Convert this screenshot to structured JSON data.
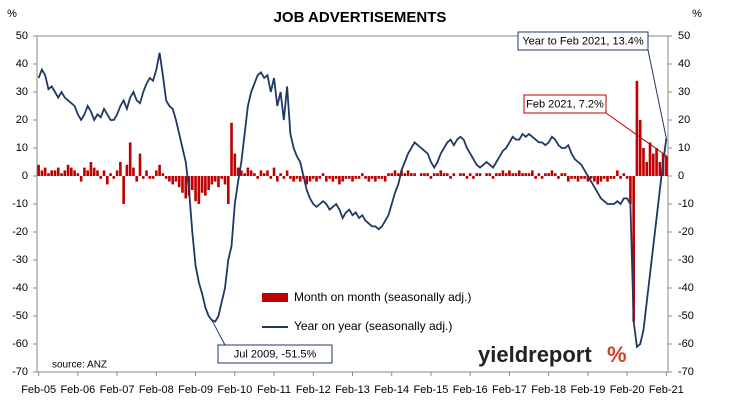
{
  "chart_data": {
    "type": "combo",
    "title": "JOB ADVERTISEMENTS",
    "y_label": "%",
    "y2_label": "%",
    "source": "source: ANZ",
    "logo": "yieldreport",
    "logo_mark": "%",
    "annotations": [
      "Year to Feb 2021, 13.4%",
      "Feb 2021, 7.2%",
      "Jul 2009, -51.5%"
    ],
    "ylim": [
      -70,
      50
    ],
    "yticks": [
      -70,
      -60,
      -50,
      -40,
      -30,
      -20,
      -10,
      0,
      10,
      20,
      30,
      40,
      50
    ],
    "y2lim": [
      -70,
      50
    ],
    "y2ticks": [
      -70,
      -60,
      -50,
      -40,
      -30,
      -20,
      -10,
      0,
      10,
      20,
      30,
      40,
      50
    ],
    "grid": false,
    "categories": [
      "Feb-05",
      null,
      null,
      null,
      null,
      null,
      null,
      null,
      null,
      null,
      null,
      null,
      "Feb-06",
      null,
      null,
      null,
      null,
      null,
      null,
      null,
      null,
      null,
      null,
      null,
      "Feb-07",
      null,
      null,
      null,
      null,
      null,
      null,
      null,
      null,
      null,
      null,
      null,
      "Feb-08",
      null,
      null,
      null,
      null,
      null,
      null,
      null,
      null,
      null,
      null,
      null,
      "Feb-09",
      null,
      null,
      null,
      null,
      null,
      null,
      null,
      null,
      null,
      null,
      null,
      "Feb-10",
      null,
      null,
      null,
      null,
      null,
      null,
      null,
      null,
      null,
      null,
      null,
      "Feb-11",
      null,
      null,
      null,
      null,
      null,
      null,
      null,
      null,
      null,
      null,
      null,
      "Feb-12",
      null,
      null,
      null,
      null,
      null,
      null,
      null,
      null,
      null,
      null,
      null,
      "Feb-13",
      null,
      null,
      null,
      null,
      null,
      null,
      null,
      null,
      null,
      null,
      null,
      "Feb-14",
      null,
      null,
      null,
      null,
      null,
      null,
      null,
      null,
      null,
      null,
      null,
      "Feb-15",
      null,
      null,
      null,
      null,
      null,
      null,
      null,
      null,
      null,
      null,
      null,
      "Feb-16",
      null,
      null,
      null,
      null,
      null,
      null,
      null,
      null,
      null,
      null,
      null,
      "Feb-17",
      null,
      null,
      null,
      null,
      null,
      null,
      null,
      null,
      null,
      null,
      null,
      "Feb-18",
      null,
      null,
      null,
      null,
      null,
      null,
      null,
      null,
      null,
      null,
      null,
      "Feb-19",
      null,
      null,
      null,
      null,
      null,
      null,
      null,
      null,
      null,
      null,
      null,
      "Feb-20",
      null,
      null,
      null,
      null,
      null,
      null,
      null,
      null,
      null,
      null,
      null,
      "Feb-21"
    ],
    "series": [
      {
        "name": "Month on month (seasonally adj.)",
        "type": "bar",
        "color": "#c00000",
        "values": [
          4,
          2,
          3,
          1,
          2,
          2,
          3,
          1,
          2,
          4,
          3,
          2,
          1,
          -2,
          3,
          2,
          5,
          3,
          2,
          -1,
          2,
          -3,
          1,
          -1,
          2,
          5,
          -10,
          4,
          12,
          3,
          -2,
          8,
          -1,
          2,
          -1,
          -1,
          2,
          4,
          1,
          -1,
          -2,
          -3,
          -2,
          -4,
          -6,
          -8,
          -7,
          -5,
          -9,
          -10,
          -6,
          -7,
          -5,
          -3,
          -2,
          -4,
          -1,
          -3,
          -10,
          19,
          8,
          3,
          2,
          1,
          3,
          2,
          1,
          -1,
          2,
          1,
          2,
          -1,
          3,
          -2,
          1,
          -1,
          2,
          -1,
          -2,
          -1,
          -2,
          -1,
          -3,
          -2,
          -1,
          -2,
          -1,
          1,
          -2,
          -1,
          -2,
          -1,
          -3,
          -2,
          -1,
          -1,
          -2,
          -1,
          -1,
          1,
          -1,
          -2,
          -1,
          -2,
          -1,
          -1,
          -2,
          1,
          1,
          2,
          1,
          2,
          1,
          2,
          1,
          1,
          0,
          1,
          1,
          1,
          -1,
          1,
          1,
          2,
          1,
          1,
          -1,
          1,
          0,
          1,
          1,
          -1,
          1,
          -1,
          1,
          1,
          0,
          1,
          1,
          -1,
          1,
          1,
          2,
          1,
          2,
          1,
          1,
          2,
          1,
          1,
          1,
          2,
          -1,
          1,
          -1,
          1,
          1,
          2,
          1,
          -1,
          1,
          1,
          -2,
          -1,
          -1,
          -2,
          -1,
          -1,
          -2,
          -1,
          -2,
          -3,
          -2,
          -1,
          -2,
          -1,
          -1,
          2,
          -1,
          1,
          -1,
          -10,
          -52,
          34,
          20,
          10,
          5,
          12,
          8,
          10,
          5,
          8,
          7.2
        ]
      },
      {
        "name": "Year on year (seasonally adj.)",
        "type": "line",
        "color": "#1f3864",
        "values": [
          35,
          38,
          36,
          31,
          32,
          30,
          28,
          30,
          28,
          27,
          26,
          25,
          22,
          20,
          22,
          25,
          23,
          20,
          22,
          21,
          24,
          22,
          20,
          20,
          22,
          25,
          27,
          24,
          28,
          30,
          27,
          26,
          30,
          33,
          35,
          34,
          38,
          44,
          36,
          27,
          25,
          24,
          20,
          15,
          10,
          5,
          -5,
          -20,
          -32,
          -38,
          -42,
          -47,
          -50,
          -51.5,
          -52,
          -50,
          -45,
          -40,
          -30,
          -25,
          -10,
          -2,
          5,
          15,
          25,
          30,
          33,
          36,
          37,
          35,
          36,
          30,
          35,
          25,
          30,
          20,
          32,
          15,
          10,
          7,
          5,
          0,
          -5,
          -8,
          -10,
          -11,
          -10,
          -9,
          -10,
          -12,
          -11,
          -10,
          -12,
          -15,
          -13,
          -12,
          -14,
          -13,
          -15,
          -14,
          -16,
          -17,
          -18,
          -18,
          -19,
          -18,
          -16,
          -14,
          -10,
          -6,
          -3,
          2,
          5,
          8,
          10,
          12,
          11,
          10,
          9,
          8,
          5,
          3,
          5,
          8,
          10,
          12,
          13,
          11,
          13,
          14,
          13,
          10,
          8,
          6,
          4,
          3,
          4,
          5,
          4,
          3,
          5,
          7,
          9,
          10,
          12,
          14,
          13,
          13,
          15,
          14,
          15,
          14,
          13,
          12,
          12,
          11,
          12,
          14,
          13,
          11,
          10,
          10,
          11,
          8,
          6,
          5,
          4,
          2,
          0,
          -2,
          -4,
          -6,
          -8,
          -9,
          -10,
          -10,
          -10,
          -9,
          -10,
          -8,
          -8,
          -10,
          -52,
          -61,
          -60,
          -55,
          -45,
          -35,
          -25,
          -15,
          -5,
          5,
          13.4
        ]
      }
    ]
  }
}
